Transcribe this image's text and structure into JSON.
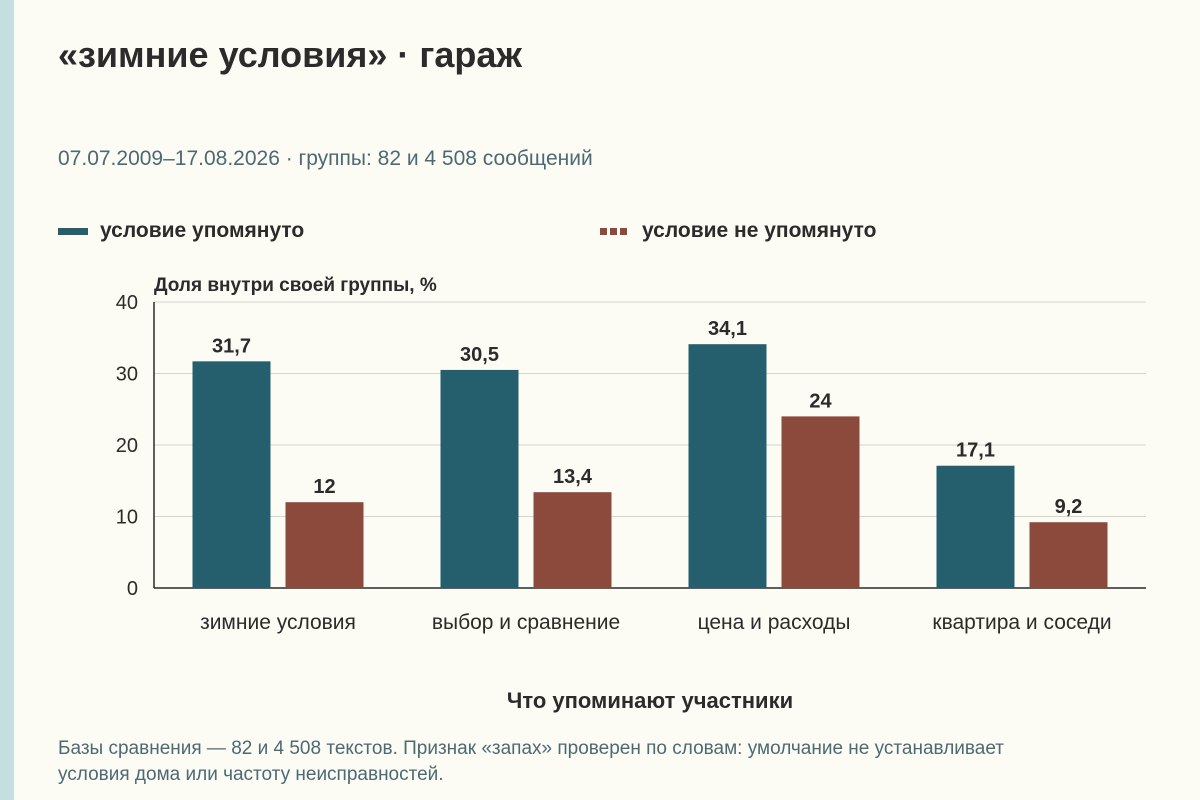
{
  "title": "«зимние условия» · гараж",
  "subtitle": "07.07.2009–17.08.2026 · группы: 82 и 4 508 сообщений",
  "legend": [
    {
      "label": "условие упомянуто",
      "color": "#255f6d",
      "style": "solid"
    },
    {
      "label": "условие не упомянуто",
      "color": "#8b4a3c",
      "style": "dashed"
    }
  ],
  "footnote": "Базы сравнения — 82 и 4 508 текстов. Признак «запах» проверен по словам: умолчание не устанавливает условия дома или частоту неисправностей.",
  "chart_data": {
    "type": "bar",
    "categories": [
      "зимние условия",
      "выбор и сравнение",
      "цена и расходы",
      "квартира и соседи"
    ],
    "series": [
      {
        "name": "условие упомянуто",
        "values": [
          31.7,
          30.5,
          34.1,
          17.1
        ],
        "labels": [
          "31,7",
          "30,5",
          "34,1",
          "17,1"
        ],
        "color": "#255f6d"
      },
      {
        "name": "условие не упомянуто",
        "values": [
          12,
          13.4,
          24,
          9.2
        ],
        "labels": [
          "12",
          "13,4",
          "24",
          "9,2"
        ],
        "color": "#8b4a3c"
      }
    ],
    "ylabel": "Доля внутри своей группы, %",
    "xlabel": "Что упоминают участники",
    "ylim": [
      0,
      40
    ],
    "yticks": [
      0,
      10,
      20,
      30,
      40
    ],
    "grid": true
  }
}
